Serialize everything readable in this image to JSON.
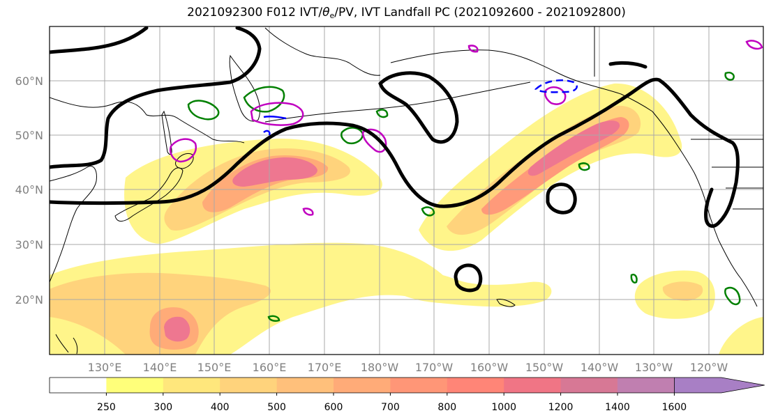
{
  "title_main": "2021092300 F012 IVT/",
  "title_theta": "θ",
  "title_sub": "e",
  "title_rest": "/PV, IVT Landfall PC (2021092600 - 2021092800)",
  "lat_labels": [
    "60°N",
    "50°N",
    "40°N",
    "30°N",
    "20°N"
  ],
  "lon_labels": [
    "130°E",
    "140°E",
    "150°E",
    "160°E",
    "170°E",
    "180°W",
    "170°W",
    "160°W",
    "150°W",
    "140°W",
    "130°W",
    "120°W"
  ],
  "colorbar": {
    "levels": [
      "250",
      "300",
      "400",
      "500",
      "600",
      "700",
      "800",
      "1000",
      "1200",
      "1400",
      "1600"
    ],
    "colors": [
      "#ffffff",
      "#ffff7a",
      "#ffe77c",
      "#ffd37c",
      "#ffc07b",
      "#ffab78",
      "#ff9677",
      "#ff8577",
      "#f07585",
      "#d77895",
      "#c07fb0",
      "#a87fc5"
    ]
  },
  "colors": {
    "ivt_light": "#fff58a",
    "ivt_mid": "#ffd37c",
    "ivt_high": "#ff9a7a",
    "ivt_core": "#ee7790",
    "pv_contour": "#000000",
    "theta_green": "#008000",
    "theta_magenta": "#c000c0",
    "theta_blue": "#0000ff"
  }
}
